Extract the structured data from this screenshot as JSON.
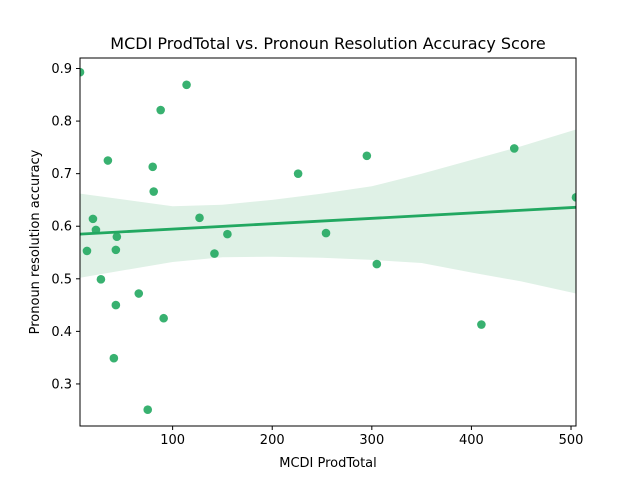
{
  "chart_data": {
    "type": "scatter",
    "title": "MCDI ProdTotal vs. Pronoun Resolution Accuracy Score",
    "xlabel": "MCDI ProdTotal",
    "ylabel": "Pronoun resolution accuracy",
    "xlim": [
      7,
      505
    ],
    "ylim": [
      0.22,
      0.92
    ],
    "xticks": [
      100,
      200,
      300,
      400,
      500
    ],
    "yticks": [
      0.3,
      0.4,
      0.5,
      0.6,
      0.7,
      0.8,
      0.9
    ],
    "grid": false,
    "color": "#22a861",
    "band_color": "#dff1e6",
    "points": [
      {
        "x": 7,
        "y": 0.893
      },
      {
        "x": 114,
        "y": 0.869
      },
      {
        "x": 88,
        "y": 0.821
      },
      {
        "x": 443,
        "y": 0.748
      },
      {
        "x": 35,
        "y": 0.725
      },
      {
        "x": 295,
        "y": 0.734
      },
      {
        "x": 80,
        "y": 0.713
      },
      {
        "x": 226,
        "y": 0.7
      },
      {
        "x": 81,
        "y": 0.666
      },
      {
        "x": 505,
        "y": 0.655
      },
      {
        "x": 20,
        "y": 0.614
      },
      {
        "x": 127,
        "y": 0.616
      },
      {
        "x": 23,
        "y": 0.593
      },
      {
        "x": 254,
        "y": 0.587
      },
      {
        "x": 155,
        "y": 0.585
      },
      {
        "x": 44,
        "y": 0.58
      },
      {
        "x": 14,
        "y": 0.553
      },
      {
        "x": 43,
        "y": 0.555
      },
      {
        "x": 142,
        "y": 0.548
      },
      {
        "x": 305,
        "y": 0.528
      },
      {
        "x": 28,
        "y": 0.499
      },
      {
        "x": 66,
        "y": 0.472
      },
      {
        "x": 43,
        "y": 0.45
      },
      {
        "x": 91,
        "y": 0.425
      },
      {
        "x": 410,
        "y": 0.413
      },
      {
        "x": 41,
        "y": 0.349
      },
      {
        "x": 75,
        "y": 0.251
      }
    ],
    "regression": {
      "x": [
        7,
        505
      ],
      "y": [
        0.585,
        0.636
      ]
    },
    "confidence_band": {
      "x": [
        7,
        100,
        150,
        200,
        250,
        300,
        350,
        400,
        450,
        505
      ],
      "upper": [
        0.662,
        0.638,
        0.641,
        0.65,
        0.662,
        0.676,
        0.7,
        0.726,
        0.752,
        0.784
      ],
      "lower": [
        0.502,
        0.532,
        0.541,
        0.542,
        0.54,
        0.536,
        0.53,
        0.512,
        0.495,
        0.472
      ]
    }
  }
}
